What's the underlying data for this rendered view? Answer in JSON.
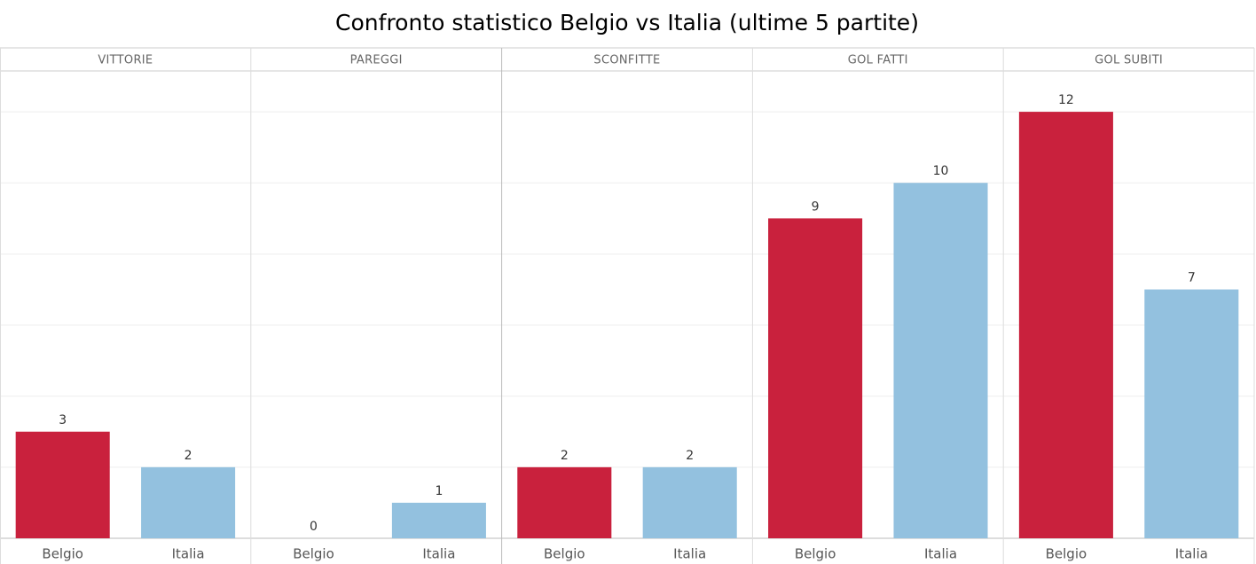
{
  "chart_data": {
    "type": "bar",
    "title": "Confronto statistico Belgio vs Italia (ultime 5 partite)",
    "categories": [
      "Belgio",
      "Italia"
    ],
    "colors": [
      "#c9213d",
      "#93c1df"
    ],
    "panels": [
      {
        "name": "VITTORIE",
        "values": [
          3,
          2
        ]
      },
      {
        "name": "PAREGGI",
        "values": [
          0,
          1
        ]
      },
      {
        "name": "SCONFITTE",
        "values": [
          2,
          2
        ]
      },
      {
        "name": "GOL FATTI",
        "values": [
          9,
          10
        ]
      },
      {
        "name": "GOL SUBITI",
        "values": [
          12,
          7
        ]
      }
    ],
    "ylim": [
      0,
      13.15
    ],
    "yticks": [
      0,
      2,
      4,
      6,
      8,
      10,
      12
    ],
    "grid": true
  }
}
